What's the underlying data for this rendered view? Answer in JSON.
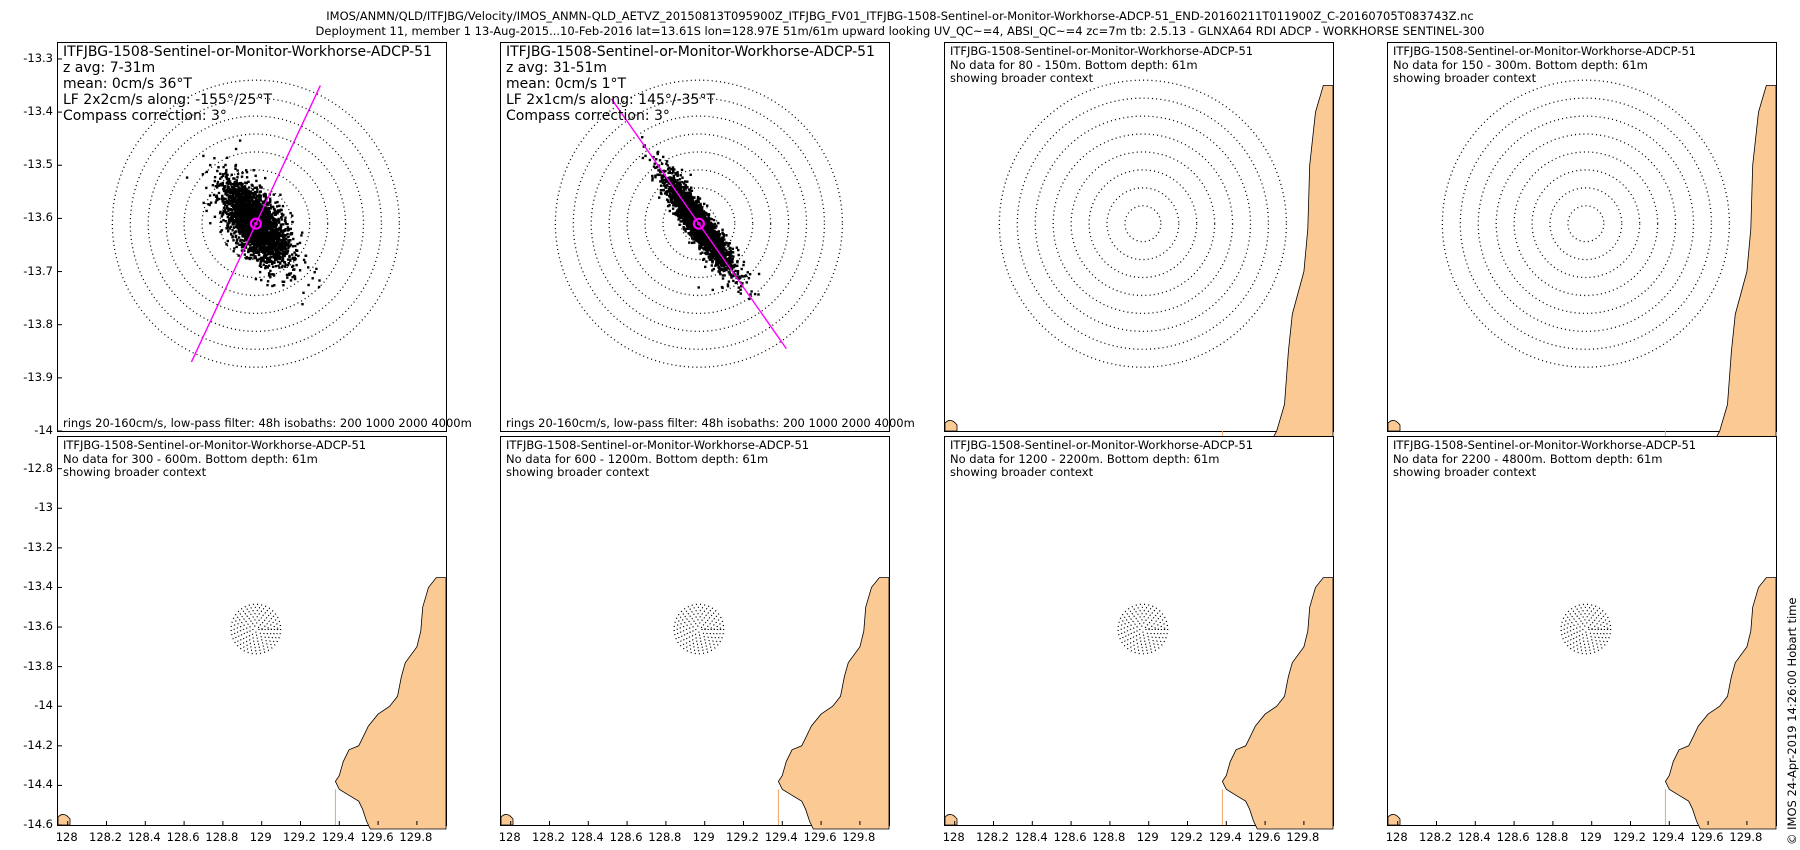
{
  "header": {
    "line1": "IMOS/ANMN/QLD/ITFJBG/Velocity/IMOS_ANMN-QLD_AETVZ_20150813T095900Z_ITFJBG_FV01_ITFJBG-1508-Sentinel-or-Monitor-Workhorse-ADCP-51_END-20160211T011900Z_C-20160705T083743Z.nc",
    "line2": "Deployment 11, member 1 13-Aug-2015...10-Feb-2016 lat=13.61S lon=128.97E 51m/61m upward looking UV_QC~=4, ABSI_QC~=4 zc=7m tb: 2.5.13 - GLNXA64 RDI ADCP - WORKHORSE SENTINEL-300"
  },
  "credit": "© IMOS 24-Apr-2019 14:26:00 Hobart time",
  "chart_data": {
    "type": "scatter",
    "x_ticks": [
      128,
      128.2,
      128.4,
      128.6,
      128.8,
      129,
      129.2,
      129.4,
      129.6,
      129.8
    ],
    "x_tick_labels": [
      "128",
      "128.2",
      "128.4",
      "128.6",
      "128.8",
      "129",
      "129.2",
      "129.4",
      "129.6",
      "129.8"
    ],
    "top_row": {
      "y_ticks": [
        -13.3,
        -13.4,
        -13.5,
        -13.6,
        -13.7,
        -13.8,
        -13.9,
        -14
      ],
      "y_tick_labels": [
        "-13.3",
        "-13.4",
        "-13.5",
        "-13.6",
        "-13.7",
        "-13.8",
        "-13.9",
        "-14"
      ],
      "ylim": [
        -14.0,
        -13.27
      ]
    },
    "bottom_row": {
      "y_ticks": [
        -12.8,
        -13,
        -13.2,
        -13.4,
        -13.6,
        -13.8,
        -14,
        -14.2,
        -14.4,
        -14.6
      ],
      "y_tick_labels": [
        "-12.8",
        "-13",
        "-13.2",
        "-13.4",
        "-13.6",
        "-13.8",
        "-14",
        "-14.2",
        "-14.4",
        "-14.6"
      ],
      "ylim": [
        -14.6,
        -12.64
      ]
    },
    "xlim": [
      127.95,
      129.95
    ],
    "station": {
      "lon": 128.97,
      "lat": -13.61
    },
    "panels": [
      {
        "id": "p1",
        "title_lines": [
          "ITFJBG-1508-Sentinel-or-Monitor-Workhorse-ADCP-51",
          "z avg: 7-31m",
          "mean: 0cm/s 36°T",
          "LF 2x2cm/s along: -155°/25°T",
          "Compass correction: 3°"
        ],
        "footer": "rings 20-160cm/s, low-pass filter: 48h isobaths: 200 1000 2000 4000m",
        "has_data": true,
        "rings_cm_s": [
          20,
          40,
          60,
          80,
          100,
          120,
          140,
          160
        ],
        "along_axis_deg": 25,
        "cloud_major_deg": 145,
        "cloud_major_cm_s": 65,
        "cloud_minor_cm_s": 28,
        "mean_cm_s": 0,
        "mean_dir_deg": 36
      },
      {
        "id": "p2",
        "title_lines": [
          "ITFJBG-1508-Sentinel-or-Monitor-Workhorse-ADCP-51",
          "z avg: 31-51m",
          "mean: 0cm/s 1°T",
          "LF 2x1cm/s along: 145°/-35°T",
          "Compass correction: 3°"
        ],
        "footer": "rings 20-160cm/s, low-pass filter: 48h isobaths: 200 1000 2000 4000m",
        "has_data": true,
        "rings_cm_s": [
          20,
          40,
          60,
          80,
          100,
          120,
          140,
          160
        ],
        "along_axis_deg": 145,
        "cloud_major_deg": 145,
        "cloud_major_cm_s": 75,
        "cloud_minor_cm_s": 15,
        "mean_cm_s": 0,
        "mean_dir_deg": 1
      },
      {
        "id": "p3",
        "title_lines": [
          "ITFJBG-1508-Sentinel-or-Monitor-Workhorse-ADCP-51",
          "No data for 80 - 150m. Bottom depth: 61m",
          "showing broader context"
        ],
        "has_data": false
      },
      {
        "id": "p4",
        "title_lines": [
          "ITFJBG-1508-Sentinel-or-Monitor-Workhorse-ADCP-51",
          "No data for 150 - 300m. Bottom depth: 61m",
          "showing broader context"
        ],
        "has_data": false
      },
      {
        "id": "p5",
        "title_lines": [
          "ITFJBG-1508-Sentinel-or-Monitor-Workhorse-ADCP-51",
          "No data for 300 - 600m. Bottom depth: 61m",
          "showing broader context"
        ],
        "has_data": false
      },
      {
        "id": "p6",
        "title_lines": [
          "ITFJBG-1508-Sentinel-or-Monitor-Workhorse-ADCP-51",
          "No data for 600 - 1200m. Bottom depth: 61m",
          "showing broader context"
        ],
        "has_data": false
      },
      {
        "id": "p7",
        "title_lines": [
          "ITFJBG-1508-Sentinel-or-Monitor-Workhorse-ADCP-51",
          "No data for 1200 - 2200m. Bottom depth: 61m",
          "showing broader context"
        ],
        "has_data": false
      },
      {
        "id": "p8",
        "title_lines": [
          "ITFJBG-1508-Sentinel-or-Monitor-Workhorse-ADCP-51",
          "No data for 2200 - 4800m. Bottom depth: 61m",
          "showing broader context"
        ],
        "has_data": false
      }
    ],
    "colors": {
      "land": "#fbc994",
      "points": "#000000",
      "axis_line": "#ff00ff",
      "mean_marker": "#ff00ff",
      "rings": "#000000"
    }
  }
}
